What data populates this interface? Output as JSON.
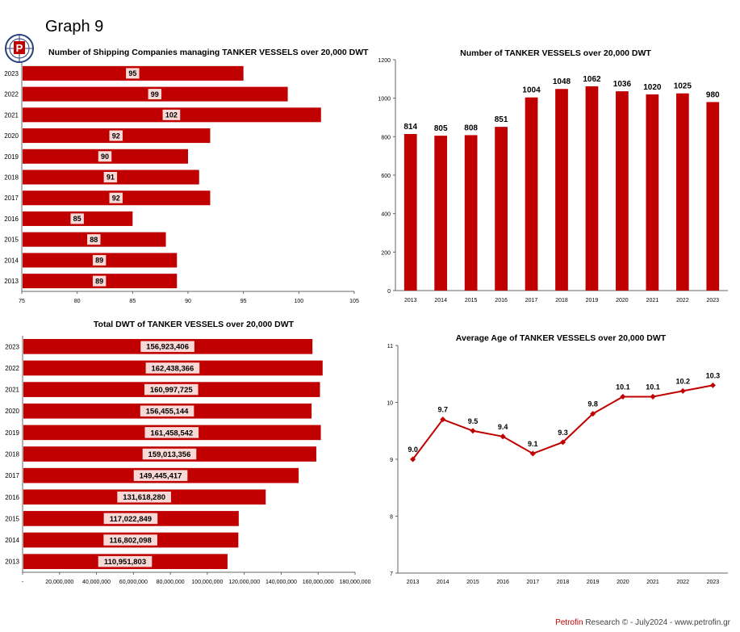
{
  "page": {
    "heading": "Graph 9",
    "footer_brand": "Petrofin",
    "footer_rest": " Research © - July2024 - www.petrofin.gr"
  },
  "colors": {
    "bar": "#c00000",
    "label_bg": "#f8d9d6",
    "axis": "#666666"
  },
  "chart_data": [
    {
      "id": "companies",
      "type": "bar",
      "orientation": "horizontal",
      "title": "Number of Shipping Companies managing TANKER VESSELS over 20,000 DWT",
      "categories": [
        "2023",
        "2022",
        "2021",
        "2020",
        "2019",
        "2018",
        "2017",
        "2016",
        "2015",
        "2014",
        "2013"
      ],
      "values": [
        95,
        99,
        102,
        92,
        90,
        91,
        92,
        85,
        88,
        89,
        89
      ],
      "labels": [
        "95",
        "99",
        "102",
        "92",
        "90",
        "91",
        "92",
        "85",
        "88",
        "89",
        "89"
      ],
      "xlim": [
        75,
        105
      ],
      "xticks": [
        "75",
        "80",
        "85",
        "90",
        "95",
        "100",
        "105"
      ],
      "grid": false
    },
    {
      "id": "vessels",
      "type": "bar",
      "orientation": "vertical",
      "title": "Number of TANKER  VESSELS over 20,000 DWT",
      "categories": [
        "2013",
        "2014",
        "2015",
        "2016",
        "2017",
        "2018",
        "2019",
        "2020",
        "2021",
        "2022",
        "2023"
      ],
      "values": [
        814,
        805,
        808,
        851,
        1004,
        1048,
        1062,
        1036,
        1020,
        1025,
        980
      ],
      "labels": [
        "814",
        "805",
        "808",
        "851",
        "1004",
        "1048",
        "1062",
        "1036",
        "1020",
        "1025",
        "980"
      ],
      "ylim": [
        0,
        1200
      ],
      "yticks": [
        "0",
        "200",
        "400",
        "600",
        "800",
        "1000",
        "1200"
      ],
      "grid": false
    },
    {
      "id": "dwt",
      "type": "bar",
      "orientation": "horizontal",
      "title": "Total DWT of TANKER VESSELS over 20,000 DWT",
      "categories": [
        "2023",
        "2022",
        "2021",
        "2020",
        "2019",
        "2018",
        "2017",
        "2016",
        "2015",
        "2014",
        "2013"
      ],
      "values": [
        156923406,
        162438366,
        160997725,
        156455144,
        161458542,
        159013356,
        149445417,
        131618280,
        117022849,
        116802098,
        110951803
      ],
      "labels": [
        "156,923,406",
        "162,438,366",
        "160,997,725",
        "156,455,144",
        "161,458,542",
        "159,013,356",
        "149,445,417",
        "131,618,280",
        "117,022,849",
        "116,802,098",
        "110,951,803"
      ],
      "xlim": [
        0,
        180000000
      ],
      "xticks": [
        "-",
        "20,000,000",
        "40,000,000",
        "60,000,000",
        "80,000,000",
        "100,000,000",
        "120,000,000",
        "140,000,000",
        "160,000,000",
        "180,000,000"
      ],
      "grid": false
    },
    {
      "id": "age",
      "type": "line",
      "title": "Average Age of TANKER VESSELS over 20,000 DWT",
      "categories": [
        "2013",
        "2014",
        "2015",
        "2016",
        "2017",
        "2018",
        "2019",
        "2020",
        "2021",
        "2022",
        "2023"
      ],
      "values": [
        9.0,
        9.7,
        9.5,
        9.4,
        9.1,
        9.3,
        9.8,
        10.1,
        10.1,
        10.2,
        10.3
      ],
      "labels": [
        "9.0",
        "9.7",
        "9.5",
        "9.4",
        "9.1",
        "9.3",
        "9.8",
        "10.1",
        "10.1",
        "10.2",
        "10.3"
      ],
      "ylim": [
        7,
        11
      ],
      "yticks": [
        "7",
        "8",
        "9",
        "10",
        "11"
      ],
      "grid": false
    }
  ]
}
